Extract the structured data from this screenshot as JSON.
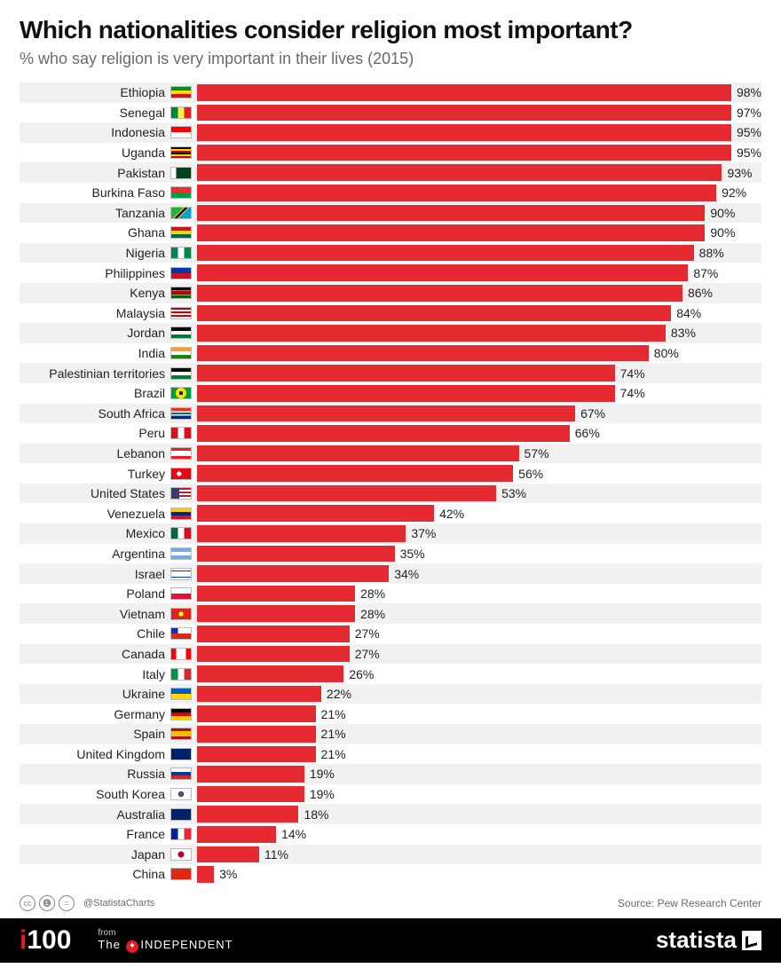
{
  "title": "Which nationalities consider religion most important?",
  "subtitle": "% who say religion is very important in their lives (2015)",
  "chart": {
    "type": "bar",
    "bar_color": "#e62a32",
    "row_bg_alt": "#f1f1f1",
    "row_bg": "#ffffff",
    "label_fontsize": 14,
    "value_fontsize": 14,
    "max_value": 100,
    "data": [
      {
        "country": "Ethiopia",
        "value": 98,
        "flag": "linear-gradient(to bottom,#078930 33%,#fcdd09 33% 66%,#da121a 66%)"
      },
      {
        "country": "Senegal",
        "value": 97,
        "flag": "linear-gradient(to right,#00853f 33%,#fdef42 33% 66%,#e31b23 66%)"
      },
      {
        "country": "Indonesia",
        "value": 95,
        "flag": "linear-gradient(to bottom,#ff0000 50%,#fff 50%)"
      },
      {
        "country": "Uganda",
        "value": 95,
        "flag": "repeating-linear-gradient(to bottom,#000 0 16%,#fcdc04 16% 33%,#d90000 33% 50%)"
      },
      {
        "country": "Pakistan",
        "value": 93,
        "flag": "linear-gradient(to right,#fff 25%,#01411c 25%)"
      },
      {
        "country": "Burkina Faso",
        "value": 92,
        "flag": "linear-gradient(to bottom,#ef2b2d 50%,#009e49 50%)"
      },
      {
        "country": "Tanzania",
        "value": 90,
        "flag": "linear-gradient(135deg,#1eb53a 40%,#fcd116 40% 45%,#000 45% 55%,#fcd116 55% 60%,#00a3dd 60%)"
      },
      {
        "country": "Ghana",
        "value": 90,
        "flag": "linear-gradient(to bottom,#ce1126 33%,#fcd116 33% 66%,#006b3f 66%)"
      },
      {
        "country": "Nigeria",
        "value": 88,
        "flag": "linear-gradient(to right,#008751 33%,#fff 33% 66%,#008751 66%)"
      },
      {
        "country": "Philippines",
        "value": 87,
        "flag": "linear-gradient(to bottom,#0038a8 50%,#ce1126 50%)"
      },
      {
        "country": "Kenya",
        "value": 86,
        "flag": "linear-gradient(to bottom,#000 28%,#fff 28% 33%,#bb0000 33% 66%,#fff 66% 72%,#006600 72%)"
      },
      {
        "country": "Malaysia",
        "value": 84,
        "flag": "repeating-linear-gradient(to bottom,#cc0001 0 2px,#fff 2px 4px)"
      },
      {
        "country": "Jordan",
        "value": 83,
        "flag": "linear-gradient(to bottom,#000 33%,#fff 33% 66%,#007a3d 66%)"
      },
      {
        "country": "India",
        "value": 80,
        "flag": "linear-gradient(to bottom,#ff9933 33%,#fff 33% 66%,#138808 66%)"
      },
      {
        "country": "Palestinian territories",
        "value": 74,
        "flag": "linear-gradient(to bottom,#000 33%,#fff 33% 66%,#007a3d 66%)"
      },
      {
        "country": "Brazil",
        "value": 74,
        "flag": "radial-gradient(circle at 50% 50%,#002776 18%,#fedf00 18% 48%,#009b3a 48%)"
      },
      {
        "country": "South Africa",
        "value": 67,
        "flag": "linear-gradient(to bottom,#de3831 30%,#fff 30% 40%,#007a4d 40% 60%,#fff 60% 70%,#002395 70%)"
      },
      {
        "country": "Peru",
        "value": 66,
        "flag": "linear-gradient(to right,#d91023 33%,#fff 33% 66%,#d91023 66%)"
      },
      {
        "country": "Lebanon",
        "value": 57,
        "flag": "linear-gradient(to bottom,#ed1c24 25%,#fff 25% 75%,#ed1c24 75%)"
      },
      {
        "country": "Turkey",
        "value": 56,
        "flag": "radial-gradient(circle at 40% 50%,#fff 18%,#e30a17 18%)"
      },
      {
        "country": "United States",
        "value": 53,
        "flag": "linear-gradient(to right,#3c3b6e 40%,transparent 40%),repeating-linear-gradient(to bottom,#b22234 0 2px,#fff 2px 4px)"
      },
      {
        "country": "Venezuela",
        "value": 42,
        "flag": "linear-gradient(to bottom,#ffcc00 33%,#00247d 33% 66%,#cf142b 66%)"
      },
      {
        "country": "Mexico",
        "value": 37,
        "flag": "linear-gradient(to right,#006847 33%,#fff 33% 66%,#ce1126 66%)"
      },
      {
        "country": "Argentina",
        "value": 35,
        "flag": "linear-gradient(to bottom,#74acdf 33%,#fff 33% 66%,#74acdf 66%)"
      },
      {
        "country": "Israel",
        "value": 34,
        "flag": "linear-gradient(to bottom,#fff 15%,#0038b8 15% 25%,#fff 25% 75%,#0038b8 75% 85%,#fff 85%)"
      },
      {
        "country": "Poland",
        "value": 28,
        "flag": "linear-gradient(to bottom,#fff 50%,#dc143c 50%)"
      },
      {
        "country": "Vietnam",
        "value": 28,
        "flag": "radial-gradient(circle at 50% 50%,#ffff00 22%,#da251d 22%)"
      },
      {
        "country": "Chile",
        "value": 27,
        "flag": "linear-gradient(to bottom,transparent 50%,#d52b1e 50%),linear-gradient(to right,#0039a6 33%,#fff 33%)"
      },
      {
        "country": "Canada",
        "value": 27,
        "flag": "linear-gradient(to right,#ff0000 25%,#fff 25% 75%,#ff0000 75%)"
      },
      {
        "country": "Italy",
        "value": 26,
        "flag": "linear-gradient(to right,#009246 33%,#fff 33% 66%,#ce2b37 66%)"
      },
      {
        "country": "Ukraine",
        "value": 22,
        "flag": "linear-gradient(to bottom,#005bbb 50%,#ffd500 50%)"
      },
      {
        "country": "Germany",
        "value": 21,
        "flag": "linear-gradient(to bottom,#000 33%,#dd0000 33% 66%,#ffce00 66%)"
      },
      {
        "country": "Spain",
        "value": 21,
        "flag": "linear-gradient(to bottom,#aa151b 25%,#f1bf00 25% 75%,#aa151b 75%)"
      },
      {
        "country": "United Kingdom",
        "value": 21,
        "flag": "linear-gradient(#012169,#012169)"
      },
      {
        "country": "Russia",
        "value": 19,
        "flag": "linear-gradient(to bottom,#fff 33%,#0039a6 33% 66%,#d52b1e 66%)"
      },
      {
        "country": "South Korea",
        "value": 19,
        "flag": "radial-gradient(circle at 50% 50%,#cd2e3a 15%,#0047a0 15% 25%,#fff 25%)"
      },
      {
        "country": "Australia",
        "value": 18,
        "flag": "linear-gradient(#012169,#012169)"
      },
      {
        "country": "France",
        "value": 14,
        "flag": "linear-gradient(to right,#002395 33%,#fff 33% 66%,#ed2939 66%)"
      },
      {
        "country": "Japan",
        "value": 11,
        "flag": "radial-gradient(circle at 50% 50%,#bc002d 28%,#fff 28%)"
      },
      {
        "country": "China",
        "value": 3,
        "flag": "linear-gradient(#de2910,#de2910)"
      }
    ]
  },
  "footer": {
    "handle": "@StatistaCharts",
    "source": "Source: Pew Research Center",
    "i100": "i100",
    "from": "from",
    "independent": "INDEPENDENT",
    "statista": "statista"
  }
}
